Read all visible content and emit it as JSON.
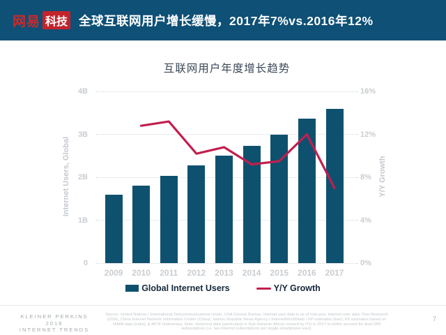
{
  "header": {
    "logo_brand": "网易",
    "logo_suffix": "科技",
    "title": "全球互联网用户增长缓慢，2017年7%vs.2016年12%"
  },
  "chart_data": {
    "type": "bar",
    "combo": "bar+line",
    "title": "互联网用户年度增长趋势",
    "categories": [
      "2009",
      "2010",
      "2011",
      "2012",
      "2013",
      "2014",
      "2015",
      "2016",
      "2017"
    ],
    "series": [
      {
        "name": "Global Internet Users",
        "type": "bar",
        "axis": "left",
        "unit": "billions",
        "color": "#0E516F",
        "values": [
          1.6,
          1.81,
          2.04,
          2.27,
          2.5,
          2.73,
          3.0,
          3.36,
          3.6
        ]
      },
      {
        "name": "Y/Y Growth",
        "type": "line",
        "axis": "right",
        "unit": "%",
        "color": "#C11F4E",
        "values": [
          null,
          12.8,
          13.2,
          10.2,
          10.8,
          9.2,
          9.5,
          12.0,
          7.0
        ]
      }
    ],
    "left_axis": {
      "label": "Internet Users, Global",
      "ticks": [
        "0",
        "1B",
        "2B",
        "3B",
        "4B"
      ],
      "range": [
        0,
        4
      ]
    },
    "right_axis": {
      "label": "Y/Y Growth",
      "ticks": [
        "0%",
        "4%",
        "8%",
        "12%",
        "16%"
      ],
      "range": [
        0,
        16
      ]
    },
    "grid": true,
    "legend_position": "bottom"
  },
  "footer": {
    "brand_lines": [
      "KLEINER PERKINS",
      "2018",
      "INTERNET TRENDS"
    ],
    "source": "Source: United Nations / International Telecommunications Union, USA Census Bureau. Internet user data is as of mid-year. Internet user data: Pew Research (USA), China Internet Network Information Center (China), Islamic Republic News Agency / InternetWorldStats / KP estimates (Iran), KP estimates based on IAMAI data (India), & APJII (Indonesia). Note: Historical data (particularly in Sub-Saharan Africa) revised by ITU in 2017 to better account for dual-SIM subscriptions (i.e. two Internet subscriptions per single smartphone user).",
    "page_number": "7"
  }
}
